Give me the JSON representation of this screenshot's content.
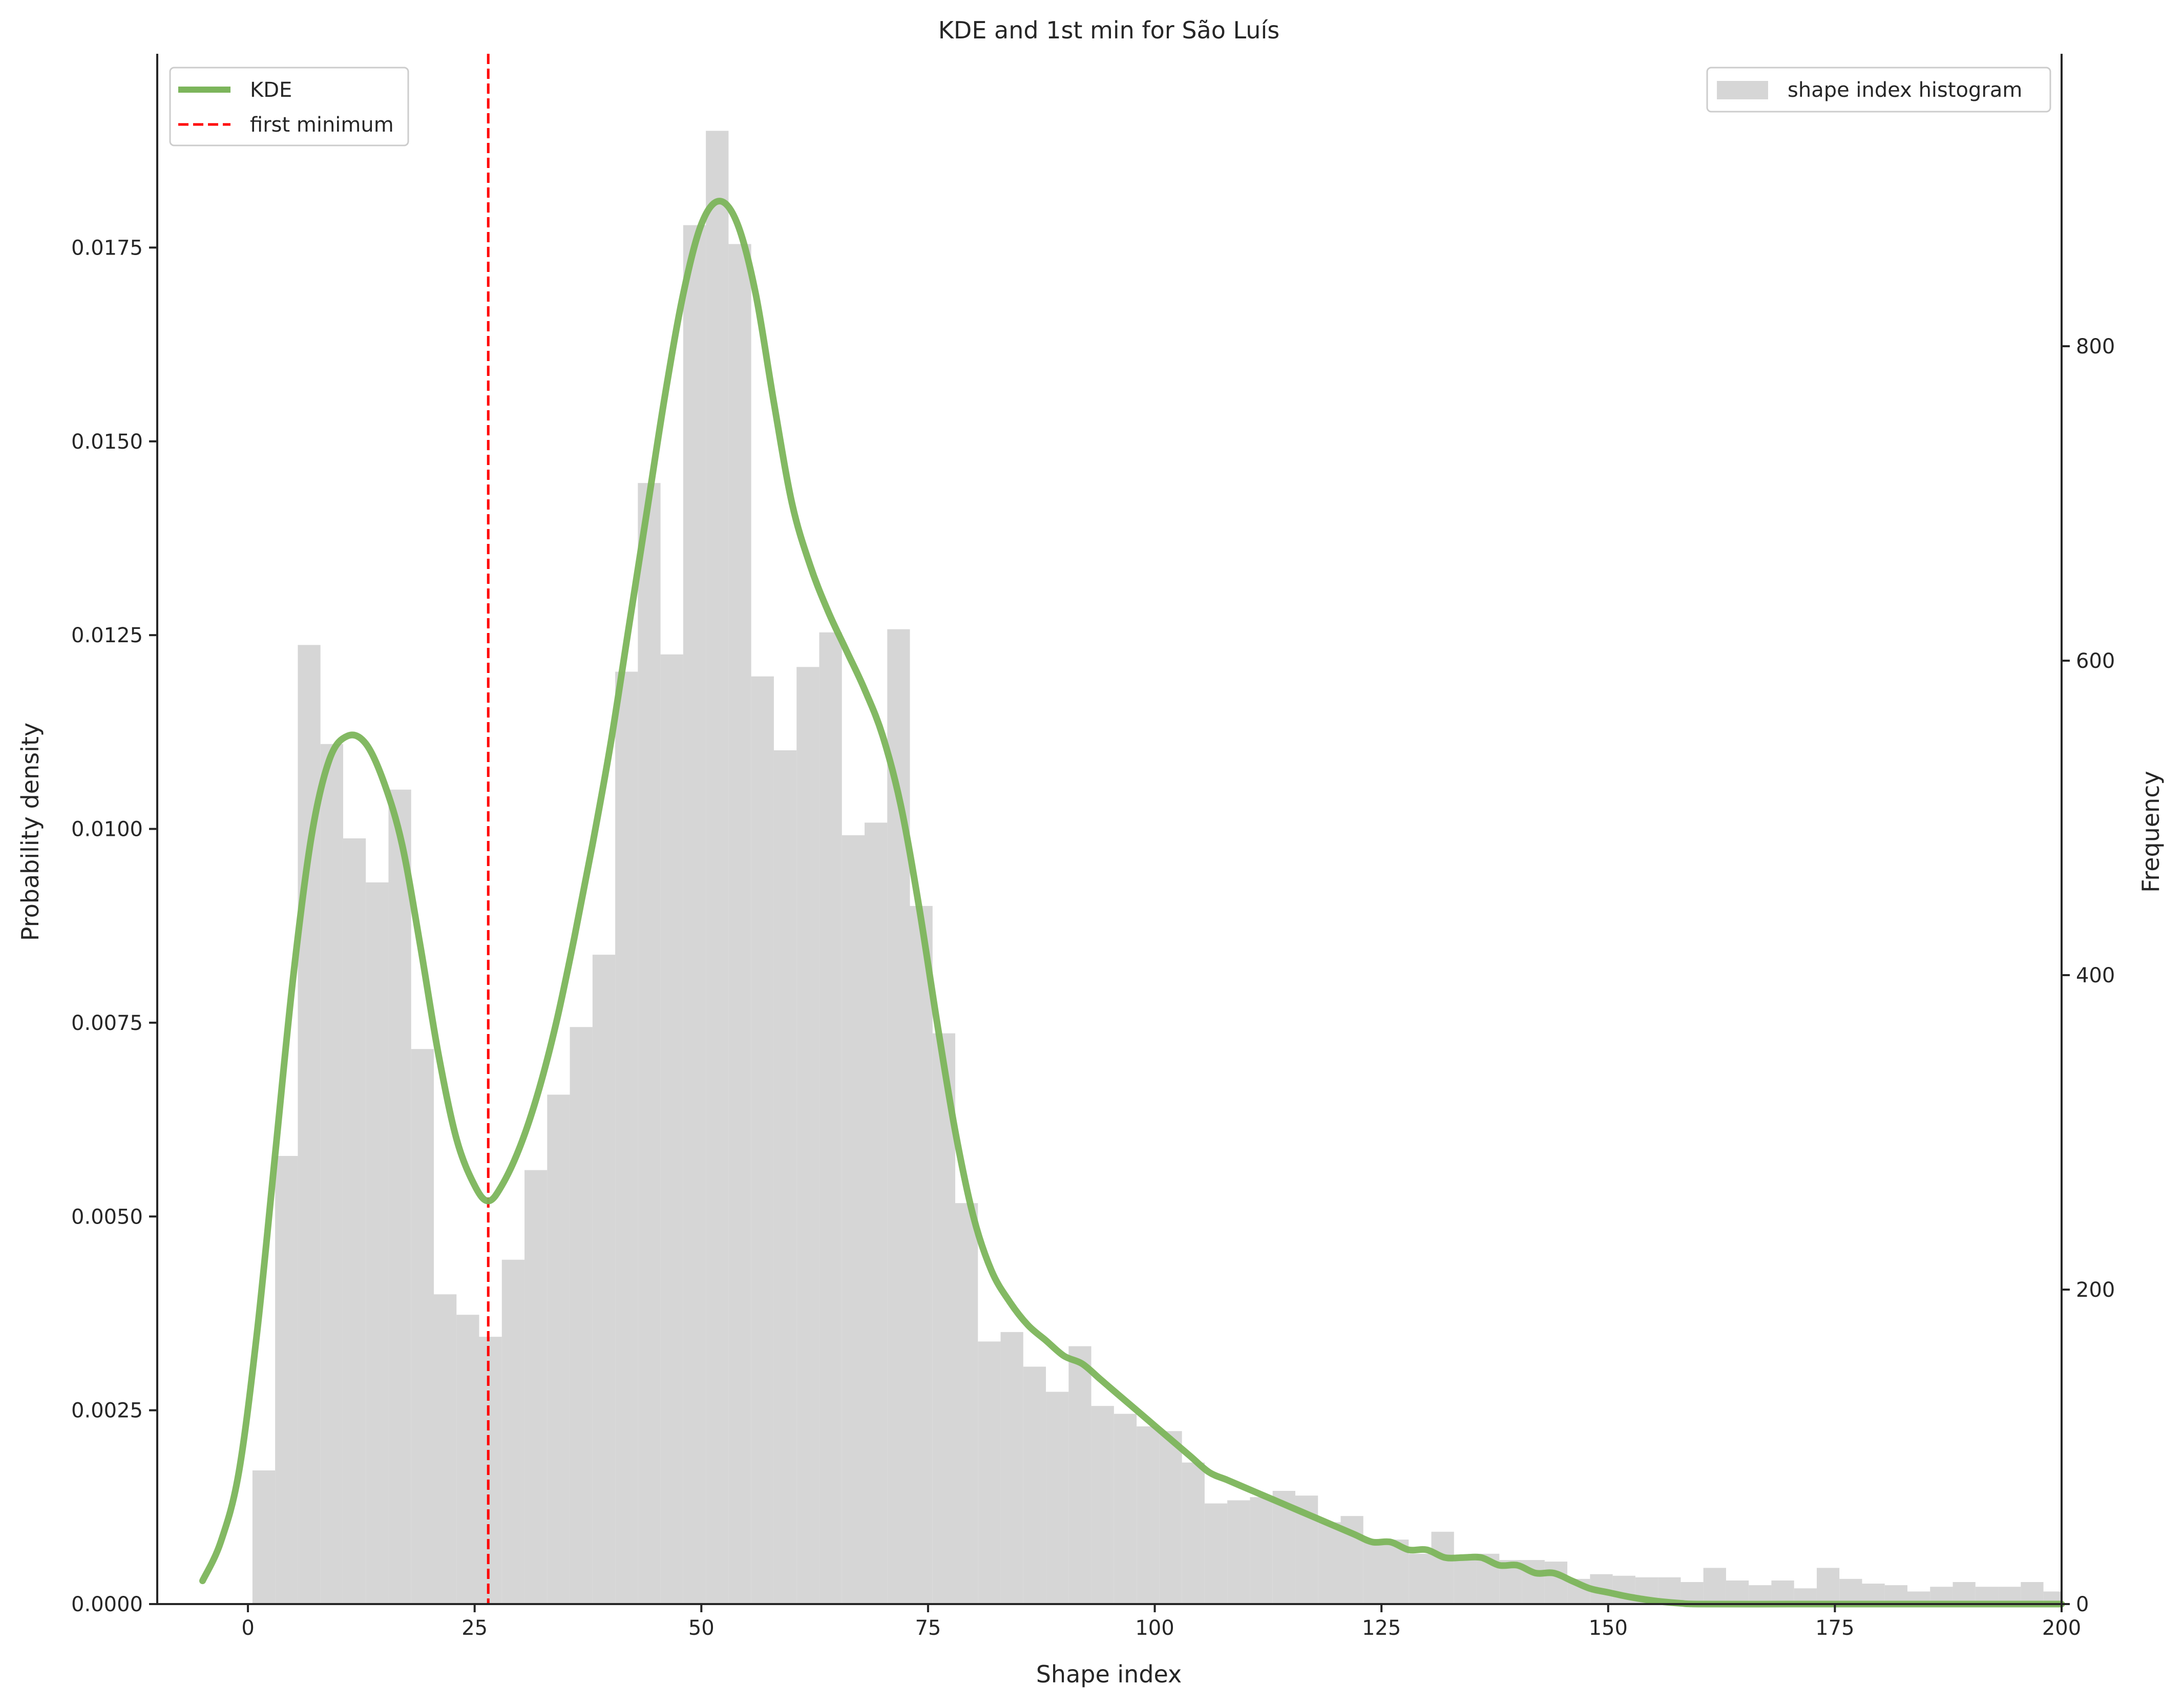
{
  "chart_data": {
    "type": "histogram+line",
    "title": "KDE and 1st min for São Luís",
    "xlabel": "Shape index",
    "ylabel_left": "Probability density",
    "ylabel_right": "Frequency",
    "xlim": [
      -10,
      200
    ],
    "ylim_left": [
      0,
      0.02
    ],
    "ylim_right": [
      0,
      986
    ],
    "x_ticks": [
      0,
      25,
      50,
      75,
      100,
      125,
      150,
      175,
      200
    ],
    "y_left_ticks": [
      "0.0000",
      "0.0025",
      "0.0050",
      "0.0075",
      "0.0100",
      "0.0125",
      "0.0150",
      "0.0175"
    ],
    "y_right_ticks": [
      0,
      200,
      400,
      600,
      800
    ],
    "legend_left": [
      {
        "label": "KDE",
        "color": "#7cb55b",
        "style": "solid"
      },
      {
        "label": "first minimum",
        "color": "#ff0000",
        "style": "dashed"
      }
    ],
    "legend_right": [
      {
        "label": "shape index histogram",
        "color": "#d6d6d6"
      }
    ],
    "first_minimum_x": 26.5,
    "histogram": {
      "bin_start": 0.5,
      "bin_width": 2.5,
      "counts": [
        85,
        285,
        610,
        547,
        487,
        459,
        518,
        353,
        197,
        184,
        170,
        219,
        276,
        324,
        367,
        413,
        593,
        713,
        604,
        877,
        937,
        865,
        590,
        543,
        596,
        618,
        489,
        497,
        620,
        444,
        363,
        255,
        167,
        173,
        151,
        135,
        164,
        126,
        121,
        113,
        110,
        90,
        64,
        66,
        68,
        72,
        69,
        52,
        56,
        41,
        41,
        32,
        46,
        28,
        32,
        28,
        28,
        27,
        16,
        19,
        18,
        17,
        17,
        14,
        23,
        15,
        12,
        15,
        10,
        23,
        16,
        13,
        12,
        8,
        11,
        14,
        11,
        11,
        14,
        8
      ]
    },
    "kde": {
      "x": [
        -5,
        -3,
        -1,
        1,
        3,
        5,
        7,
        9,
        11,
        13,
        15,
        17,
        19,
        21,
        23,
        25,
        26.5,
        28,
        30,
        32,
        34,
        36,
        38,
        40,
        42,
        44,
        46,
        48,
        50,
        52,
        54,
        56,
        58,
        60,
        62,
        64,
        66,
        68,
        70,
        72,
        74,
        76,
        78,
        80,
        82,
        84,
        86,
        88,
        90,
        92,
        94,
        96,
        98,
        100,
        102,
        104,
        106,
        108,
        110,
        112,
        114,
        116,
        118,
        120,
        122,
        124,
        126,
        128,
        130,
        132,
        134,
        136,
        138,
        140,
        142,
        144,
        146,
        148,
        150,
        152,
        154,
        156,
        158,
        160,
        170,
        180,
        190,
        200
      ],
      "y": [
        0.0003,
        0.0008,
        0.0017,
        0.0035,
        0.0058,
        0.0081,
        0.0099,
        0.0109,
        0.0112,
        0.0111,
        0.0106,
        0.0098,
        0.0085,
        0.0071,
        0.006,
        0.0054,
        0.0052,
        0.0054,
        0.0059,
        0.0066,
        0.0075,
        0.0086,
        0.0098,
        0.0111,
        0.0126,
        0.0141,
        0.0156,
        0.0169,
        0.0178,
        0.0181,
        0.0178,
        0.0169,
        0.0155,
        0.0142,
        0.0134,
        0.0128,
        0.0123,
        0.0118,
        0.0112,
        0.0103,
        0.009,
        0.0075,
        0.0061,
        0.005,
        0.0043,
        0.0039,
        0.0036,
        0.0034,
        0.0032,
        0.0031,
        0.0029,
        0.0027,
        0.0025,
        0.0023,
        0.0021,
        0.0019,
        0.0017,
        0.0016,
        0.0015,
        0.0014,
        0.0013,
        0.0012,
        0.0011,
        0.001,
        0.0009,
        0.0008,
        0.0008,
        0.0007,
        0.0007,
        0.0006,
        0.0006,
        0.0006,
        0.0005,
        0.0005,
        0.0004,
        0.0004,
        0.0003,
        0.0002,
        0.00015,
        0.0001,
        6e-05,
        3e-05,
        1e-05,
        0.0,
        0.0,
        0.0,
        0.0,
        0.0
      ]
    }
  }
}
